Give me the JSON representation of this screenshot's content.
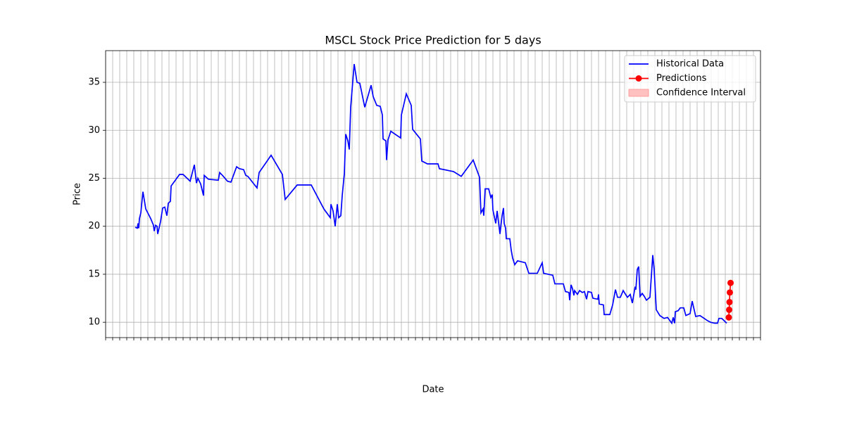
{
  "chart_data": {
    "type": "line",
    "title": "MSCL Stock Price Prediction for 5 days",
    "xlabel": "Date",
    "ylabel": "Price",
    "xlim": [
      0,
      930
    ],
    "ylim": [
      8.4,
      38.3
    ],
    "xticks": [
      0,
      10,
      20,
      30,
      40,
      50,
      60,
      70,
      80,
      90,
      100,
      110,
      120,
      130,
      140,
      150,
      160,
      170,
      180,
      190,
      200,
      210,
      220,
      230,
      240,
      250,
      260,
      270,
      280,
      290,
      300,
      310,
      320,
      330,
      340,
      350,
      360,
      370,
      380,
      390,
      400,
      410,
      420,
      430,
      440,
      450,
      460,
      470,
      480,
      490,
      500,
      510,
      520,
      530,
      540,
      550,
      560,
      570,
      580,
      590,
      600,
      610,
      620,
      630,
      640,
      650,
      660,
      670,
      680,
      690,
      700,
      710,
      720,
      730,
      740,
      750,
      760,
      770,
      780,
      790,
      800,
      810,
      820,
      830,
      840,
      850,
      860,
      870,
      880,
      890,
      900,
      910,
      920,
      930
    ],
    "yticks": [
      10,
      15,
      20,
      25,
      30,
      35
    ],
    "grid": true,
    "legend": "upper right",
    "series": [
      {
        "name": "Historical Data",
        "color": "#0000ff",
        "marker": false,
        "x": [
          42,
          45,
          46,
          47,
          48,
          50,
          53,
          57,
          64,
          68,
          69,
          71,
          73,
          74,
          78,
          81,
          84,
          87,
          89,
          92,
          93,
          98,
          105,
          110,
          120,
          126,
          129,
          131,
          135,
          139,
          140,
          146,
          160,
          162,
          166,
          173,
          178,
          186,
          190,
          196,
          199,
          202,
          215,
          218,
          235,
          251,
          255,
          272,
          292,
          310,
          319,
          320,
          323,
          326,
          329,
          331,
          334,
          336,
          339,
          341,
          344,
          346,
          348,
          353,
          357,
          361,
          368,
          377,
          380,
          385,
          390,
          393,
          394,
          398,
          399,
          401,
          405,
          419,
          420,
          427,
          434,
          436,
          447,
          449,
          457,
          472,
          474,
          494,
          505,
          522,
          531,
          533,
          536,
          537,
          539,
          544,
          547,
          549,
          550,
          554,
          556,
          560,
          563,
          565,
          566,
          568,
          569,
          574,
          576,
          578,
          581,
          585,
          596,
          601,
          613,
          620,
          622,
          635,
          638,
          650,
          653,
          658,
          659,
          661,
          663,
          665,
          666,
          670,
          673,
          677,
          680,
          683,
          685,
          690,
          692,
          699,
          700,
          701,
          707,
          708,
          716,
          720,
          724,
          727,
          731,
          735,
          741,
          745,
          748,
          752,
          753,
          755,
          757,
          759,
          762,
          765,
          768,
          773,
          777,
          779,
          782,
          787,
          793,
          798,
          804,
          806,
          808,
          809,
          813,
          816,
          821,
          824,
          830,
          833,
          838,
          844,
          850,
          854,
          859,
          865,
          869,
          871,
          875,
          882
        ],
        "values": [
          19.9,
          19.8,
          20.3,
          19.8,
          20.8,
          21.4,
          23.6,
          21.8,
          20.8,
          20.1,
          19.5,
          20.1,
          20.0,
          19.2,
          20.5,
          21.9,
          22.0,
          21.1,
          22.4,
          22.6,
          24.2,
          24.7,
          25.4,
          25.4,
          24.7,
          26.4,
          24.5,
          25.0,
          24.4,
          23.2,
          25.3,
          24.9,
          24.8,
          25.6,
          25.3,
          24.7,
          24.6,
          26.2,
          26.0,
          25.9,
          25.3,
          25.2,
          24.0,
          25.6,
          27.4,
          25.4,
          22.8,
          24.3,
          24.3,
          21.8,
          20.9,
          22.3,
          21.6,
          20.0,
          22.3,
          20.9,
          21.1,
          23.2,
          25.5,
          29.6,
          28.9,
          28.0,
          32.4,
          36.9,
          35.0,
          34.9,
          32.4,
          34.7,
          33.5,
          32.6,
          32.5,
          31.6,
          29.1,
          28.9,
          26.9,
          29.0,
          29.9,
          29.2,
          31.6,
          33.8,
          32.6,
          30.1,
          29.1,
          26.8,
          26.5,
          26.5,
          26.0,
          25.7,
          25.2,
          26.9,
          25.1,
          21.4,
          21.8,
          21.1,
          23.9,
          23.9,
          23.0,
          23.3,
          21.7,
          20.3,
          21.6,
          19.2,
          21.1,
          21.9,
          20.3,
          19.8,
          18.7,
          18.7,
          17.5,
          16.7,
          16.0,
          16.4,
          16.2,
          15.1,
          15.1,
          16.2,
          15.1,
          14.9,
          14.0,
          14.0,
          13.2,
          13.1,
          12.3,
          13.9,
          13.5,
          12.8,
          13.3,
          12.9,
          13.3,
          13.1,
          13.2,
          12.4,
          13.2,
          13.1,
          12.5,
          12.4,
          12.9,
          11.9,
          11.8,
          10.8,
          10.8,
          11.8,
          13.4,
          12.6,
          12.6,
          13.3,
          12.6,
          12.9,
          12.0,
          13.7,
          13.4,
          15.5,
          15.8,
          12.7,
          13.0,
          12.7,
          12.3,
          12.6,
          17.0,
          15.5,
          11.3,
          10.7,
          10.4,
          10.5,
          9.9,
          10.5,
          9.9,
          11.1,
          11.2,
          11.5,
          11.5,
          10.7,
          10.9,
          12.2,
          10.6,
          10.7,
          10.4,
          10.2,
          10.0,
          9.9,
          9.9,
          10.4,
          10.4,
          9.9
        ]
      },
      {
        "name": "Predictions",
        "color": "#ff0000",
        "marker": true,
        "x": [
          885,
          885.5,
          886,
          886.5,
          887.5
        ],
        "values": [
          10.5,
          11.3,
          12.1,
          13.1,
          14.1
        ]
      },
      {
        "name": "Confidence Interval",
        "color": "#ffc0c0"
      }
    ]
  }
}
